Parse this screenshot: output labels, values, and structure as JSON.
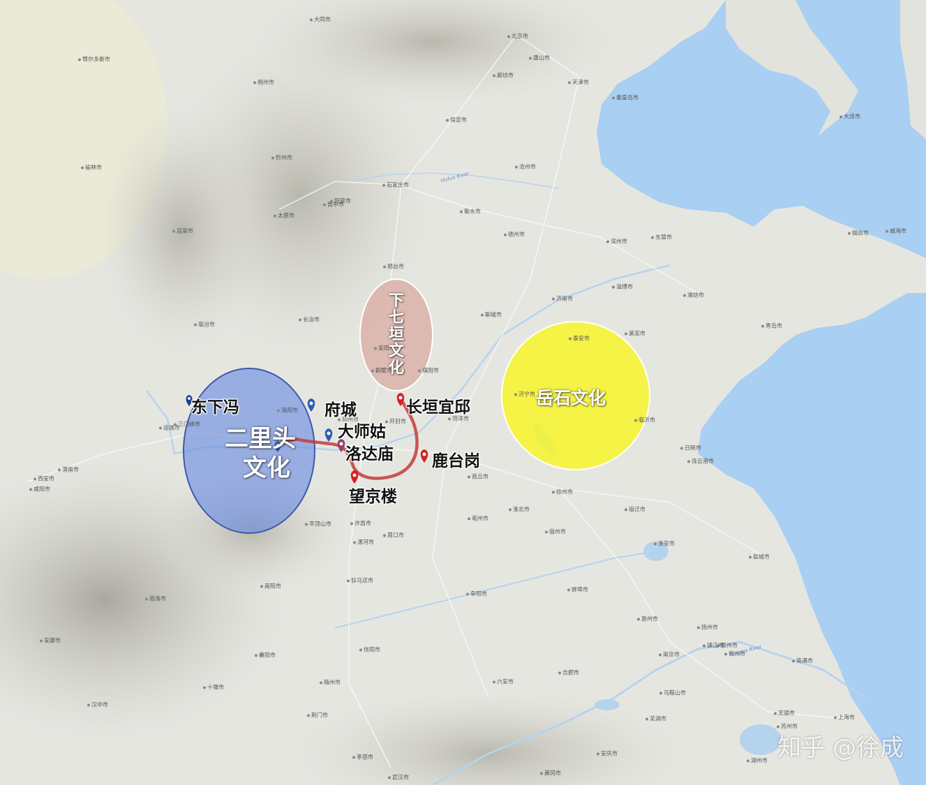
{
  "colors": {
    "sea": "#a9cff2",
    "land": "#e6e6e1",
    "mountain": "#c9c9c1",
    "erlitou": "#6f8fe0",
    "xiaqiyuan": "#d8aaa0",
    "yueshi": "#f6f52a",
    "route": "#c43a3a",
    "pin_blue": "#2c5bb8",
    "pin_red": "#d62020"
  },
  "cultures": {
    "erlitou": "二里头\n文化",
    "xiaqiyuan": "下七垣文化",
    "yueshi": "岳石文化"
  },
  "sites": {
    "dongxiafeng": "东下冯",
    "fucheng": "府城",
    "dashigu": "大师姑",
    "luodamiao": "洛达庙",
    "changyuanyiqiu": "长垣宜邱",
    "lutaigang": "鹿台岗",
    "wangjinglou": "望京楼"
  },
  "cities": [
    "北京市",
    "天津市",
    "唐山市",
    "大同市",
    "鄂尔多斯市",
    "朔州市",
    "保定市",
    "廊坊市",
    "石家庄市",
    "沧州市",
    "衡水市",
    "太原市",
    "晋中市",
    "榆林市",
    "吕梁市",
    "忻州市",
    "阳泉市",
    "德州市",
    "滨州市",
    "东营市",
    "烟台市",
    "威海市",
    "大连市",
    "邢台市",
    "济南市",
    "淄博市",
    "潍坊市",
    "青岛市",
    "聊城市",
    "临汾市",
    "长治市",
    "安阳市",
    "鹤壁市",
    "濮阳市",
    "泰安市",
    "莱芜市",
    "济宁市",
    "临沂市",
    "日照市",
    "菏泽市",
    "运城市",
    "洛阳市",
    "郑州市",
    "开封市",
    "商丘市",
    "徐州市",
    "连云港市",
    "宿迁市",
    "淮北市",
    "西安市",
    "咸阳市",
    "渭南市",
    "三门峡市",
    "平顶山市",
    "许昌市",
    "漯河市",
    "周口市",
    "亳州市",
    "宿州市",
    "淮安市",
    "盐城市",
    "蚌埠市",
    "阜阳市",
    "驻马店市",
    "南阳市",
    "信阳市",
    "六安市",
    "合肥市",
    "滁州市",
    "南京市",
    "扬州市",
    "泰州市",
    "镇江市",
    "常州市",
    "南通市",
    "无锡市",
    "苏州市",
    "上海市",
    "湖州市",
    "马鞍山市",
    "芜湖市",
    "安庆市",
    "黄冈市",
    "武汉市",
    "孝感市",
    "随州市",
    "襄阳市",
    "十堰市",
    "安康市",
    "荆门市",
    "商洛市",
    "汉中市",
    "秦皇岛市"
  ],
  "rivers": [
    "Hutuo River",
    "Yangtze River"
  ],
  "watermark": "知乎 @徐成"
}
